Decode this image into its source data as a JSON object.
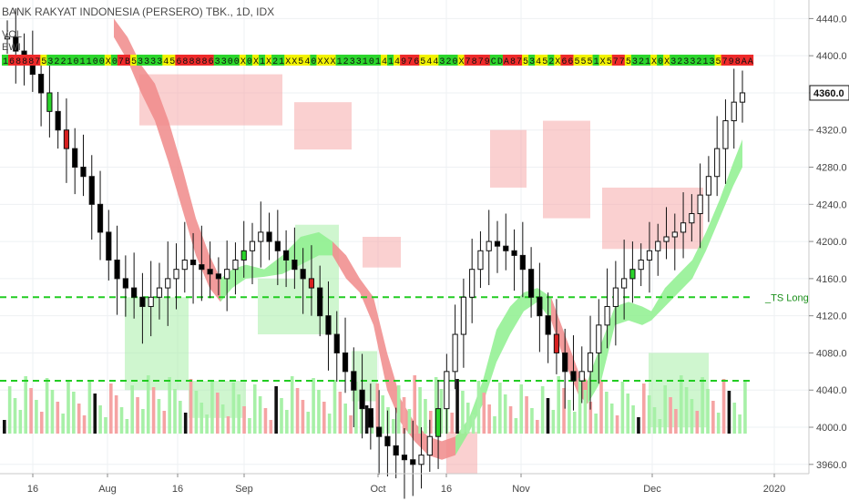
{
  "header": {
    "title": "BANK RAKYAT INDONESIA (PERSERO) TBK., 1D, IDX",
    "vol_label": "VOL",
    "ewi_label": "EWI"
  },
  "colors": {
    "up_candle_border": "#222222",
    "down_candle": "#000000",
    "green_ribbon": "#8ef08e",
    "red_ribbon": "#f08a8a",
    "red_box": "#f6a9a9",
    "green_box": "#a8efa8",
    "dashed_line": "#22cc22",
    "vol_green": "#a7f0a7",
    "vol_red": "#f5a3a3"
  },
  "indicator_strip": "1688875322101100X07B53333456888863300X0X1X21XX540XXX1233101414976544320X7879CDA8753452X665551X5775321X0X32332135798AA8",
  "chart_data": {
    "type": "candlestick",
    "title": "BANK RAKYAT INDONESIA (PERSERO) TBK., 1D, IDX",
    "ylim": [
      3950,
      4460
    ],
    "y_ticks": [
      "4440.0",
      "4400.0",
      "4360.0",
      "4320.0",
      "4280.0",
      "4240.0",
      "4200.0",
      "4160.0",
      "4120.0",
      "4080.0",
      "4040.0",
      "4000.0",
      "3960.0"
    ],
    "x_ticks": [
      "16",
      "Aug",
      "16",
      "Sep",
      "Oct",
      "16",
      "Nov",
      "Dec",
      "2020"
    ],
    "hlines": [
      {
        "price": 4140,
        "label": "_TS Long"
      },
      {
        "price": 4050,
        "label": ""
      }
    ],
    "last_price_label": "4360.0",
    "series_close": [
      4420,
      4405,
      4395,
      4380,
      4360,
      4340,
      4320,
      4300,
      4280,
      4270,
      4240,
      4210,
      4180,
      4160,
      4150,
      4140,
      4130,
      4140,
      4150,
      4160,
      4170,
      4180,
      4175,
      4170,
      4165,
      4160,
      4170,
      4180,
      4190,
      4200,
      4210,
      4200,
      4190,
      4180,
      4170,
      4160,
      4150,
      4120,
      4100,
      4080,
      4060,
      4040,
      4020,
      4000,
      3990,
      3980,
      3970,
      3965,
      3960,
      3970,
      3990,
      4020,
      4060,
      4100,
      4140,
      4170,
      4190,
      4200,
      4195,
      4190,
      4185,
      4170,
      4140,
      4120,
      4100,
      4080,
      4060,
      4050,
      4060,
      4080,
      4110,
      4130,
      4150,
      4160,
      4170,
      4180,
      4190,
      4200,
      4205,
      4210,
      4220,
      4230,
      4250,
      4270,
      4300,
      4330,
      4350,
      4360
    ]
  }
}
